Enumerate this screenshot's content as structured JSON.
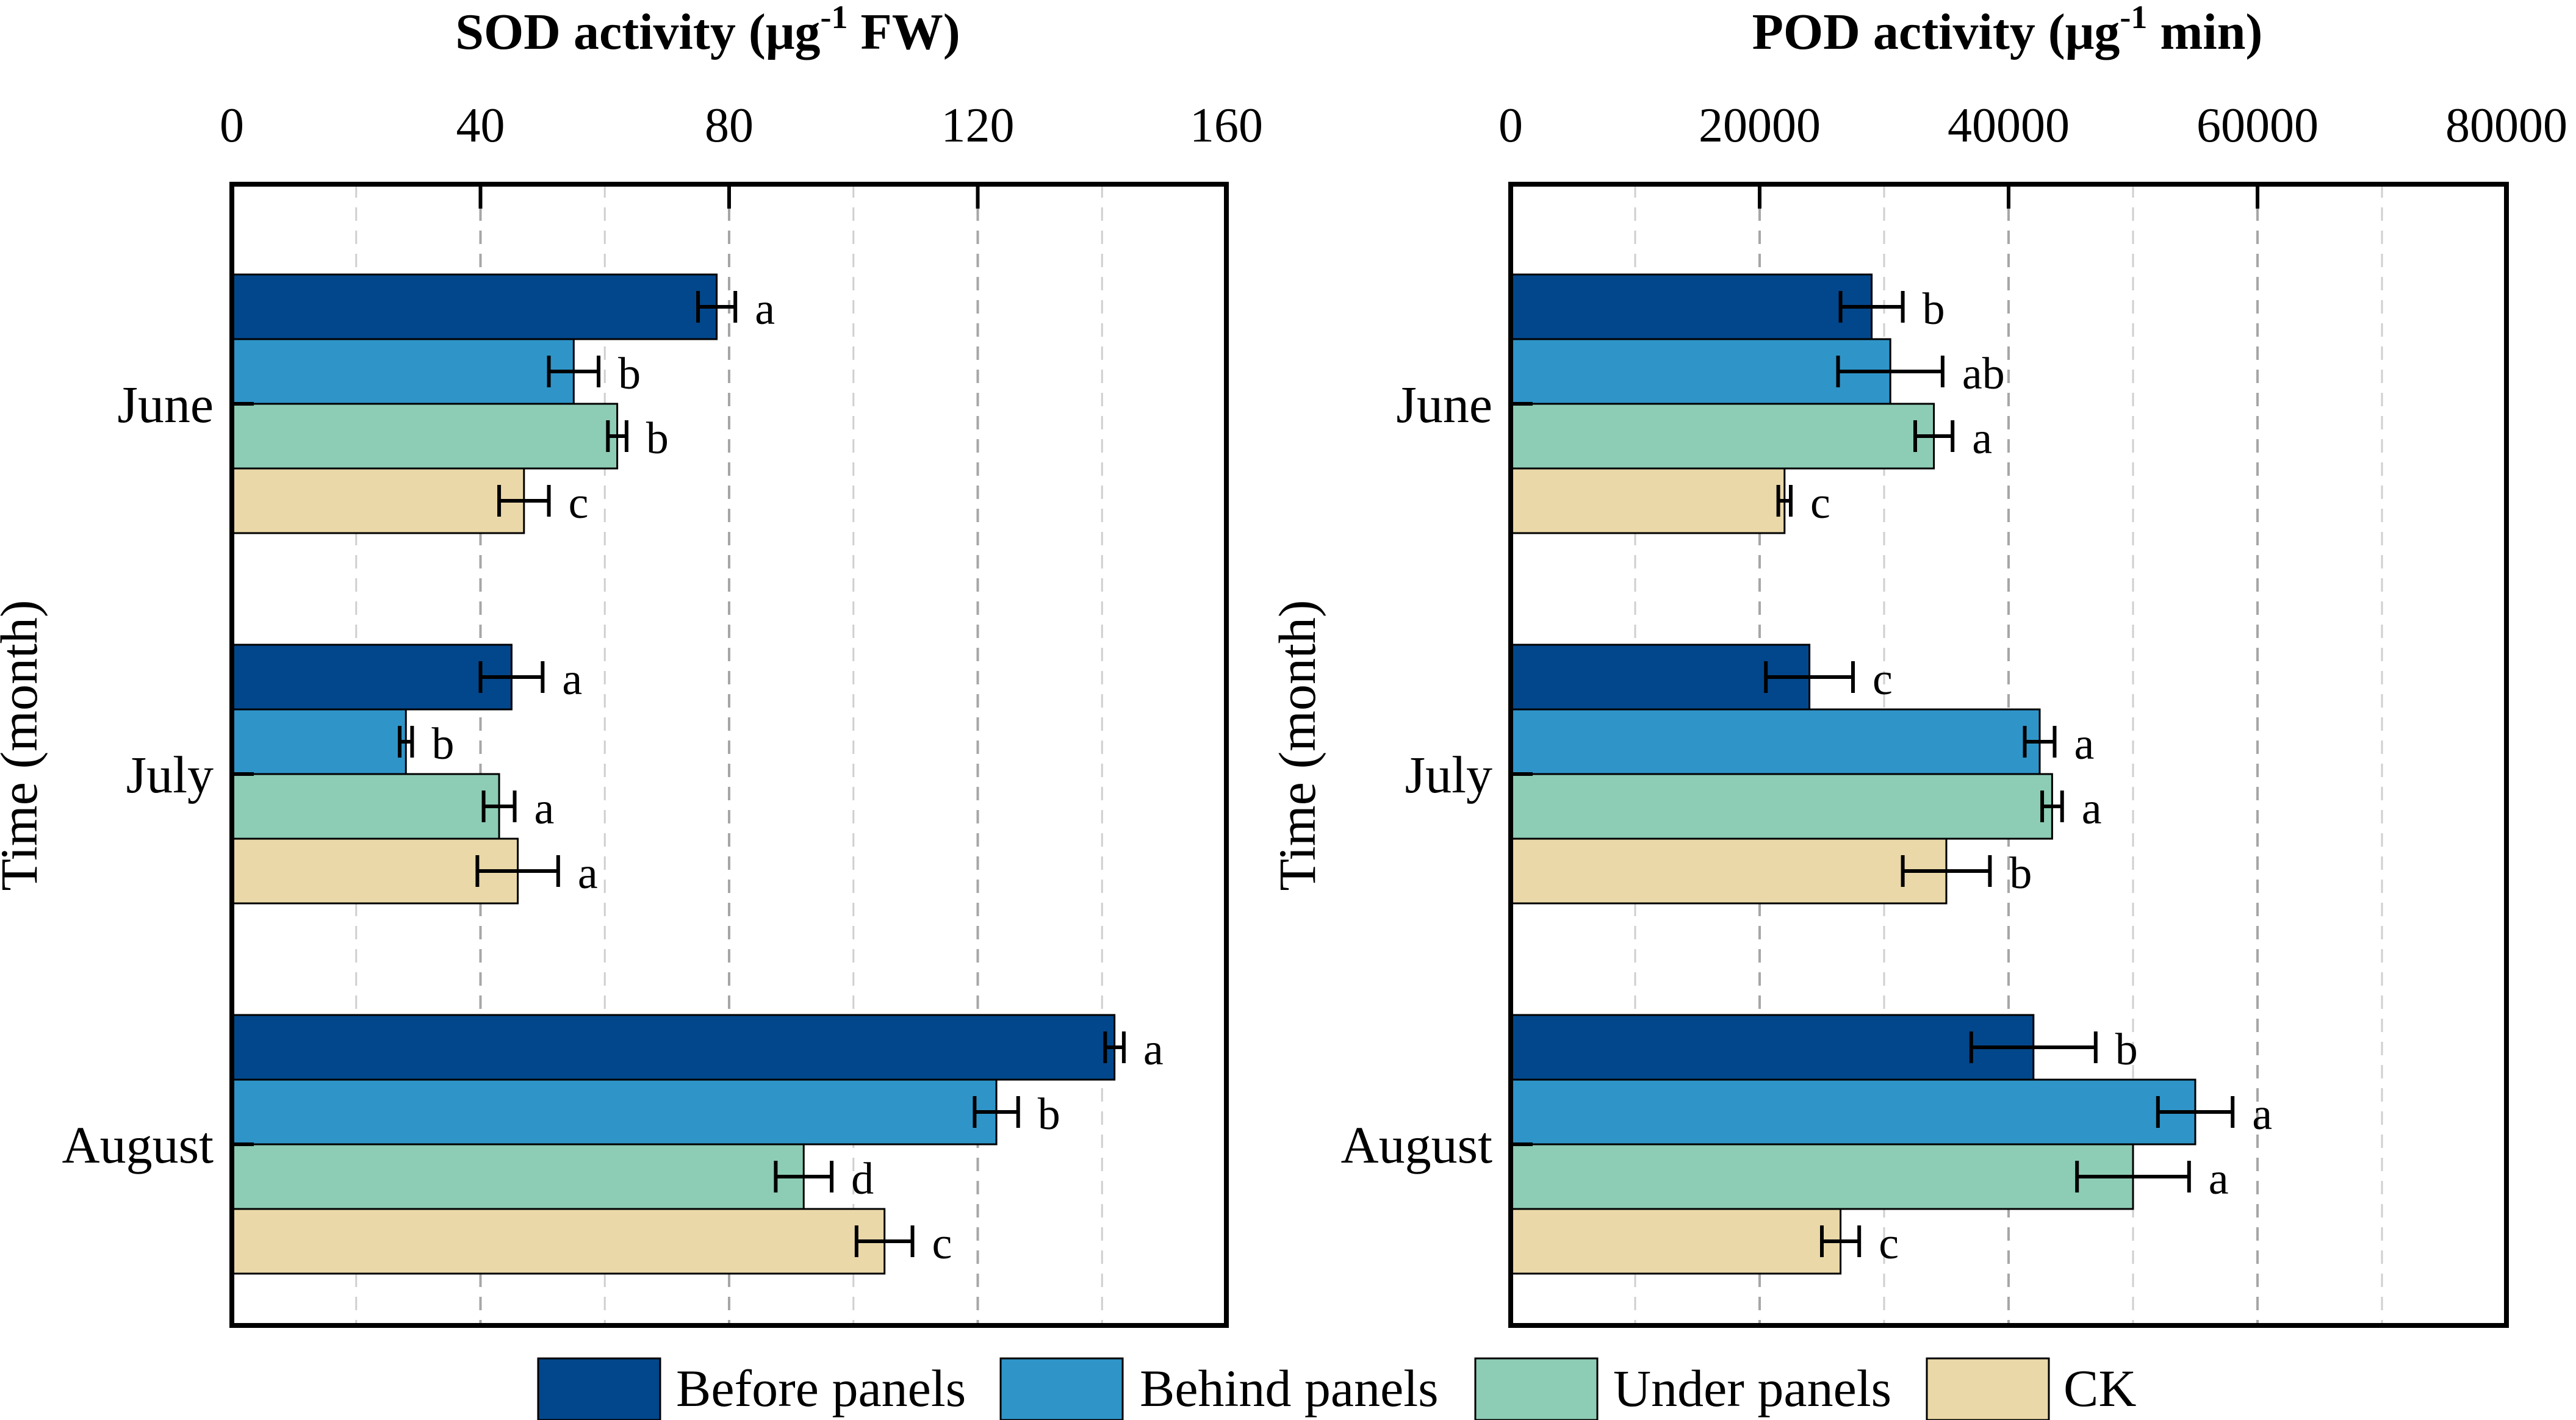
{
  "chart_data": [
    {
      "type": "bar",
      "orientation": "horizontal",
      "title": "SOD activity (μg",
      "title_sup": "-1",
      "title_tail": " FW)",
      "ylabel": "Time (month)",
      "xlim": [
        0,
        160
      ],
      "xticks": [
        0,
        40,
        80,
        120,
        160
      ],
      "xtick_labels": [
        "0",
        "40",
        "80",
        "120",
        "160"
      ],
      "grid": "vertical dashed",
      "categories": [
        "June",
        "July",
        "August"
      ],
      "series": [
        {
          "name": "Before panels",
          "values": [
            78,
            45,
            142
          ],
          "errors": [
            3,
            5,
            1.5
          ],
          "letters": [
            "a",
            "a",
            "a"
          ]
        },
        {
          "name": "Behind panels",
          "values": [
            55,
            28,
            123
          ],
          "errors": [
            4,
            1,
            3.5
          ],
          "letters": [
            "b",
            "b",
            "b"
          ]
        },
        {
          "name": "Under panels",
          "values": [
            62,
            43,
            92
          ],
          "errors": [
            1.5,
            2.5,
            4.5
          ],
          "letters": [
            "b",
            "a",
            "d"
          ]
        },
        {
          "name": "CK",
          "values": [
            47,
            46,
            105
          ],
          "errors": [
            4,
            6.5,
            4.5
          ],
          "letters": [
            "c",
            "a",
            "c"
          ]
        }
      ]
    },
    {
      "type": "bar",
      "orientation": "horizontal",
      "title": "POD activity (μg",
      "title_sup": "-1",
      "title_tail": " min)",
      "ylabel": "Time (month)",
      "xlim": [
        0,
        80000
      ],
      "xticks": [
        0,
        20000,
        40000,
        60000,
        80000
      ],
      "xtick_labels": [
        "0",
        "20000",
        "40000",
        "60000",
        "80000"
      ],
      "grid": "vertical dashed",
      "categories": [
        "June",
        "July",
        "August"
      ],
      "series": [
        {
          "name": "Before panels",
          "values": [
            29000,
            24000,
            42000
          ],
          "errors": [
            2500,
            3500,
            5000
          ],
          "letters": [
            "b",
            "c",
            "b"
          ]
        },
        {
          "name": "Behind panels",
          "values": [
            30500,
            42500,
            55000
          ],
          "errors": [
            4200,
            1200,
            3000
          ],
          "letters": [
            "ab",
            "a",
            "a"
          ]
        },
        {
          "name": "Under panels",
          "values": [
            34000,
            43500,
            50000
          ],
          "errors": [
            1500,
            800,
            4500
          ],
          "letters": [
            "a",
            "a",
            "a"
          ]
        },
        {
          "name": "CK",
          "values": [
            22000,
            35000,
            26500
          ],
          "errors": [
            500,
            3500,
            1500
          ],
          "letters": [
            "c",
            "b",
            "c"
          ]
        }
      ]
    }
  ],
  "legend": {
    "placement": "bottom",
    "items": [
      {
        "label": "Before panels",
        "color": "#02478B"
      },
      {
        "label": "Behind panels",
        "color": "#2F95C9"
      },
      {
        "label": "Under panels",
        "color": "#8DCCB5"
      },
      {
        "label": "CK",
        "color": "#EAD8A8"
      }
    ]
  }
}
